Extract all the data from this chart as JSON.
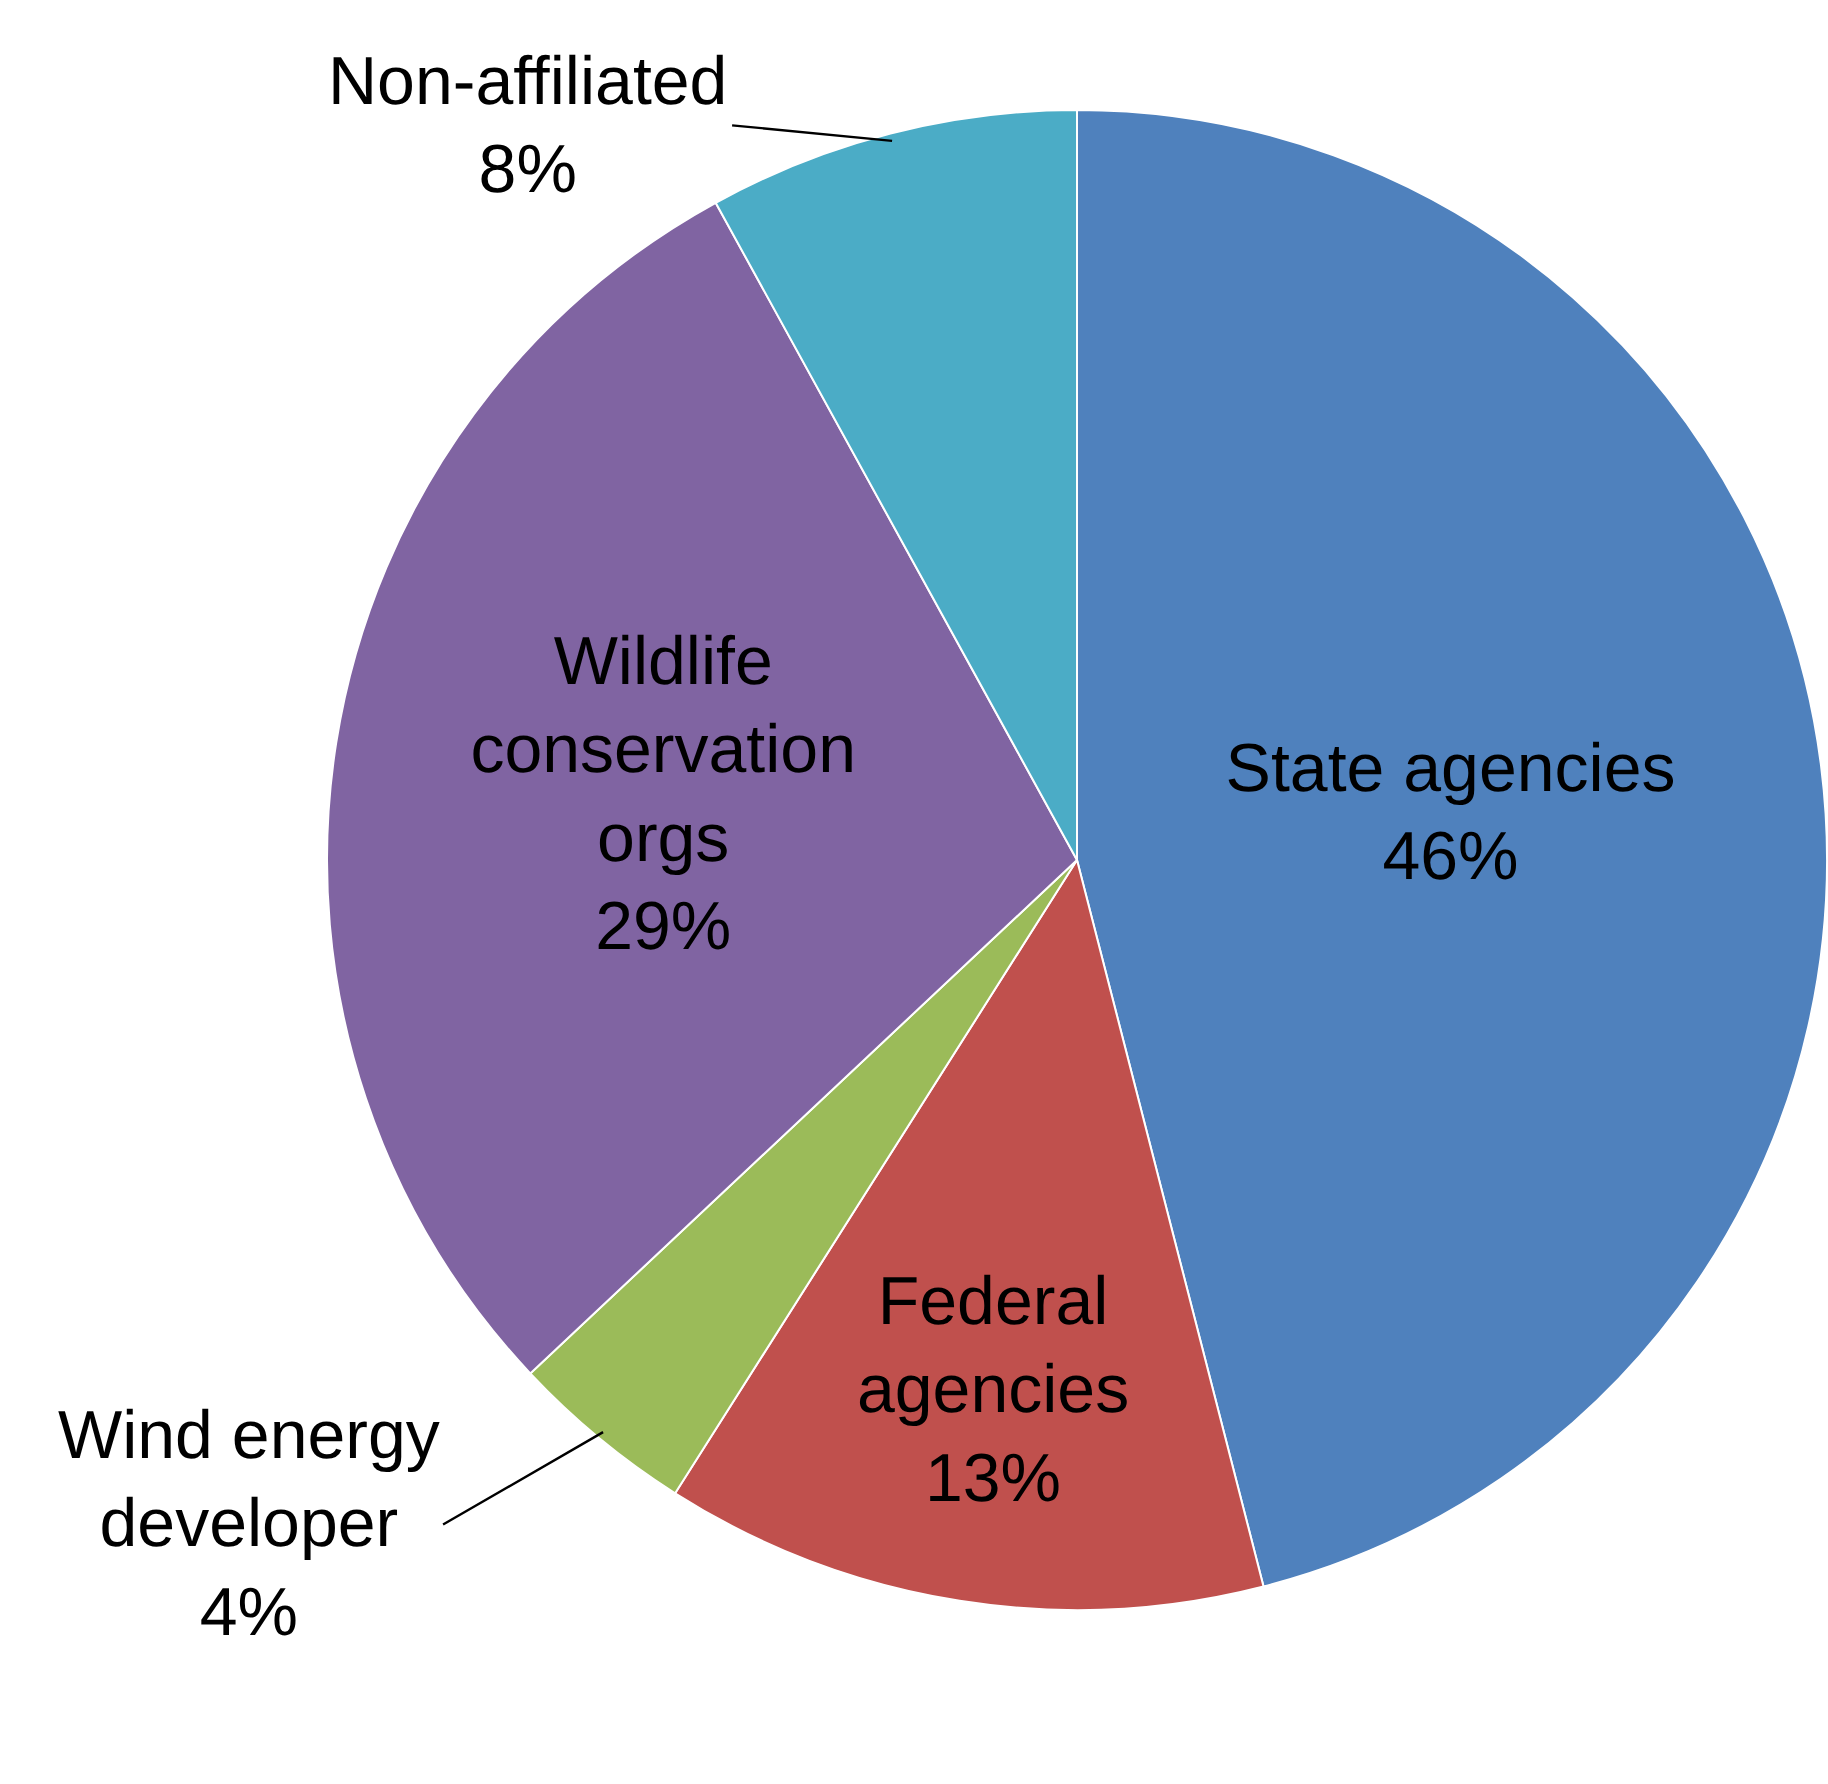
{
  "chart_data": {
    "type": "pie",
    "categories": [
      "State agencies",
      "Federal agencies",
      "Wind energy developer",
      "Wildlife conservation orgs",
      "Non-affiliated"
    ],
    "values": [
      46,
      13,
      4,
      29,
      8
    ],
    "colors": [
      "#4f81bd",
      "#c0504d",
      "#9bbb59",
      "#8064a2",
      "#4bacc6"
    ],
    "value_labels": [
      "46%",
      "13%",
      "4%",
      "29%",
      "8%"
    ]
  }
}
